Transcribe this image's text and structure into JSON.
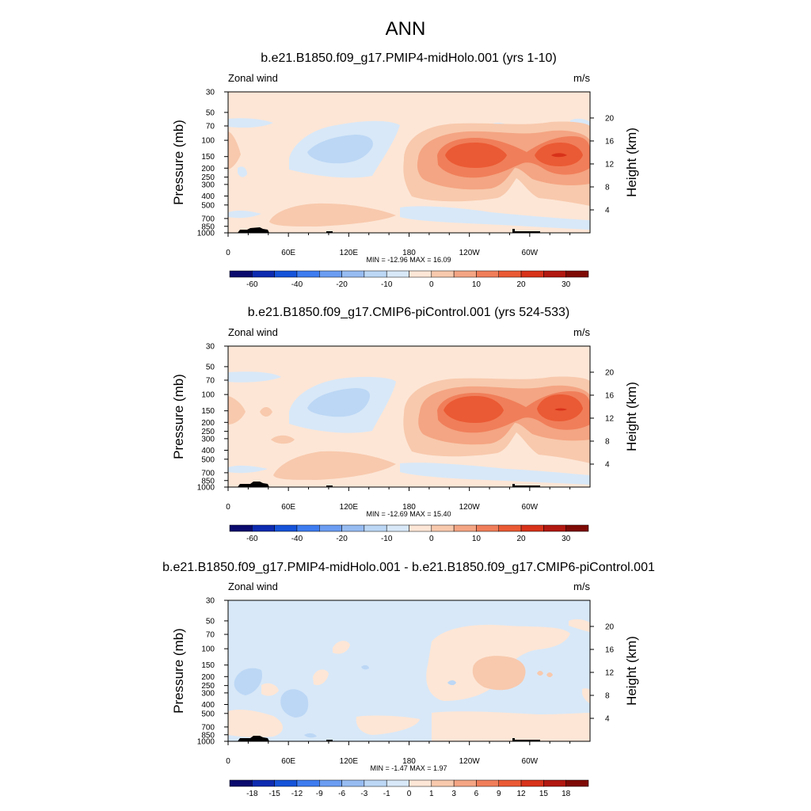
{
  "figure": {
    "title": "ANN"
  },
  "colors": {
    "palette": [
      "#0a0a6e",
      "#0d2bb0",
      "#1553d9",
      "#3d7cf0",
      "#6b9df2",
      "#97bcf2",
      "#bcd7f5",
      "#d8e8f8",
      "#fde6d6",
      "#f8c9ad",
      "#f4a583",
      "#f07e5a",
      "#ea5a34",
      "#d8321a",
      "#b11810",
      "#7f0a05"
    ],
    "terrain": "#000000"
  },
  "panels": [
    {
      "title": "b.e21.B1850.f09_g17.PMIP4-midHolo.001 (yrs 1-10)",
      "left_label": "Zonal wind",
      "right_label": "m/s",
      "minmax": "MIN = -12.96  MAX =  16.09",
      "colorbar_labels": [
        "-60",
        "-40",
        "-20",
        "-10",
        "0",
        "10",
        "20",
        "30"
      ]
    },
    {
      "title": "b.e21.B1850.f09_g17.CMIP6-piControl.001 (yrs 524-533)",
      "left_label": "Zonal wind",
      "right_label": "m/s",
      "minmax": "MIN = -12.69  MAX =  15.40",
      "colorbar_labels": [
        "-60",
        "-40",
        "-20",
        "-10",
        "0",
        "10",
        "20",
        "30"
      ]
    },
    {
      "title": "b.e21.B1850.f09_g17.PMIP4-midHolo.001 - b.e21.B1850.f09_g17.CMIP6-piControl.001",
      "left_label": "Zonal wind",
      "right_label": "m/s",
      "minmax": "MIN =  -1.47  MAX =   1.97",
      "colorbar_labels": [
        "-18",
        "-15",
        "-12",
        "-9",
        "-6",
        "-3",
        "-1",
        "0",
        "1",
        "3",
        "6",
        "9",
        "12",
        "15",
        "18"
      ]
    }
  ],
  "axes": {
    "y_left_title": "Pressure (mb)",
    "y_right_title": "Height (km)",
    "pressure_ticks": [
      "30",
      "50",
      "70",
      "100",
      "150",
      "200",
      "250",
      "300",
      "400",
      "500",
      "700",
      "850",
      "1000"
    ],
    "height_ticks": [
      "20",
      "16",
      "12",
      "8",
      "4"
    ],
    "lon_ticks": [
      "0",
      "60E",
      "120E",
      "180",
      "120W",
      "60W"
    ]
  },
  "chart_data": [
    {
      "type": "heatmap",
      "title": "b.e21.B1850.f09_g17.PMIP4-midHolo.001 (yrs 1-10)",
      "xlabel": "",
      "ylabel": "Pressure (mb)",
      "ylabel_right": "Height (km)",
      "units": "m/s",
      "variable": "Zonal wind",
      "x_ticks": [
        "0",
        "60E",
        "120E",
        "180",
        "120W",
        "60W"
      ],
      "y_ticks": [
        30,
        50,
        70,
        100,
        150,
        200,
        250,
        300,
        400,
        500,
        700,
        850,
        1000
      ],
      "y_scale": "log",
      "y_range": [
        1000,
        30
      ],
      "min": -12.96,
      "max": 16.09,
      "contour_levels": [
        -70,
        -60,
        -50,
        -40,
        -30,
        -20,
        -15,
        -10,
        -5,
        0,
        5,
        10,
        15,
        20,
        25,
        30,
        35
      ],
      "features": [
        {
          "kind": "easterly_max",
          "location": "near 100E-150E, 100-150 mb",
          "approx_value": -10
        },
        {
          "kind": "westerly_max",
          "location": "near 120W, 150 mb",
          "approx_value": 16
        },
        {
          "kind": "westerly_max",
          "location": "near 50W, 150 mb",
          "approx_value": 16
        }
      ]
    },
    {
      "type": "heatmap",
      "title": "b.e21.B1850.f09_g17.CMIP6-piControl.001 (yrs 524-533)",
      "xlabel": "",
      "ylabel": "Pressure (mb)",
      "ylabel_right": "Height (km)",
      "units": "m/s",
      "variable": "Zonal wind",
      "x_ticks": [
        "0",
        "60E",
        "120E",
        "180",
        "120W",
        "60W"
      ],
      "y_ticks": [
        30,
        50,
        70,
        100,
        150,
        200,
        250,
        300,
        400,
        500,
        700,
        850,
        1000
      ],
      "y_scale": "log",
      "y_range": [
        1000,
        30
      ],
      "min": -12.69,
      "max": 15.4,
      "contour_levels": [
        -70,
        -60,
        -50,
        -40,
        -30,
        -20,
        -15,
        -10,
        -5,
        0,
        5,
        10,
        15,
        20,
        25,
        30,
        35
      ],
      "features": [
        {
          "kind": "easterly_max",
          "location": "near 100E-150E, 100-150 mb",
          "approx_value": -10
        },
        {
          "kind": "westerly_max",
          "location": "near 130W, 150 mb",
          "approx_value": 15
        },
        {
          "kind": "westerly_max",
          "location": "near 50W, 150 mb",
          "approx_value": 15
        }
      ]
    },
    {
      "type": "heatmap",
      "title": "b.e21.B1850.f09_g17.PMIP4-midHolo.001 - b.e21.B1850.f09_g17.CMIP6-piControl.001",
      "xlabel": "",
      "ylabel": "Pressure (mb)",
      "ylabel_right": "Height (km)",
      "units": "m/s",
      "variable": "Zonal wind",
      "x_ticks": [
        "0",
        "60E",
        "120E",
        "180",
        "120W",
        "60W"
      ],
      "y_ticks": [
        30,
        50,
        70,
        100,
        150,
        200,
        250,
        300,
        400,
        500,
        700,
        850,
        1000
      ],
      "y_scale": "log",
      "y_range": [
        1000,
        30
      ],
      "min": -1.47,
      "max": 1.97,
      "contour_levels": [
        -18,
        -15,
        -12,
        -9,
        -6,
        -3,
        -1,
        0,
        1,
        3,
        6,
        9,
        12,
        15,
        18
      ],
      "features": [
        {
          "kind": "negative_diff",
          "location": "near 10E-30E, 200 mb",
          "approx_value": -1.5
        },
        {
          "kind": "negative_diff",
          "location": "near 50E-70E, 400 mb",
          "approx_value": -1.5
        },
        {
          "kind": "positive_diff",
          "location": "near 100W-150W, 200 mb",
          "approx_value": 1.5
        }
      ]
    }
  ]
}
